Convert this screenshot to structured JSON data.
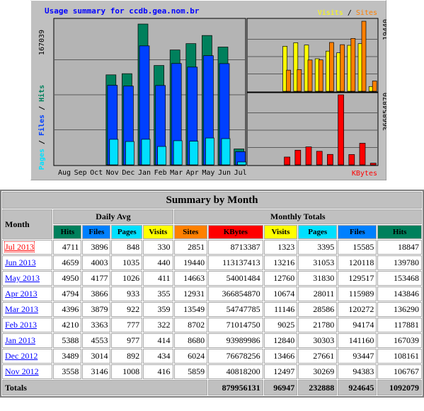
{
  "graph": {
    "title": "Usage summary for ccdb.gea.nom.br",
    "legend_visits": "Visits",
    "legend_sep": " / ",
    "legend_sites": "Sites",
    "left_max_label": "167039",
    "left_legend_pages": "Pages",
    "left_legend_sep1": " / ",
    "left_legend_files": "Files",
    "left_legend_sep2": " / ",
    "left_legend_hits": "Hits",
    "rt_max_label": "19440",
    "rb_max_label": "366854870",
    "rb_legend": "KBytes",
    "colors": {
      "hits": "#00805c",
      "files": "#0040ff",
      "pages": "#00e0ff",
      "visits": "#ffff00",
      "sites": "#ff8000",
      "kbytes": "#ff0000",
      "panel": "#c0c0c0"
    }
  },
  "chart_data": {
    "type": "bar",
    "categories": [
      "Aug",
      "Sep",
      "Oct",
      "Nov",
      "Dec",
      "Jan",
      "Feb",
      "Mar",
      "Apr",
      "May",
      "Jun",
      "Jul"
    ],
    "series": [
      {
        "name": "Hits",
        "values": [
          0,
          0,
          0,
          106767,
          108161,
          167039,
          117881,
          136290,
          143846,
          153468,
          139780,
          18847
        ]
      },
      {
        "name": "Files",
        "values": [
          0,
          0,
          0,
          94383,
          93447,
          141160,
          94174,
          120272,
          115989,
          129517,
          120118,
          15585
        ]
      },
      {
        "name": "Pages",
        "values": [
          0,
          0,
          0,
          30269,
          27661,
          30303,
          21780,
          28586,
          28011,
          31830,
          31053,
          3395
        ]
      },
      {
        "name": "Visits",
        "values": [
          0,
          0,
          0,
          12497,
          13466,
          12840,
          9025,
          11146,
          10674,
          12760,
          13216,
          1323
        ]
      },
      {
        "name": "Sites",
        "values": [
          0,
          0,
          0,
          5859,
          6024,
          8680,
          8702,
          13549,
          12931,
          14663,
          19440,
          2851
        ]
      },
      {
        "name": "KBytes",
        "values": [
          0,
          0,
          0,
          40818200,
          76678256,
          93989986,
          71014750,
          54747785,
          366854870,
          54001484,
          113137413,
          8713387
        ]
      }
    ]
  },
  "table": {
    "title": "Summary by Month",
    "month_header": "Month",
    "daily_avg_header": "Daily Avg",
    "monthly_totals_header": "Monthly Totals",
    "columns": [
      "Hits",
      "Files",
      "Pages",
      "Visits",
      "Sites",
      "KBytes",
      "Visits",
      "Pages",
      "Files",
      "Hits"
    ],
    "rows": [
      {
        "month": "Jul 2013",
        "cells": [
          "4711",
          "3896",
          "848",
          "330",
          "2851",
          "8713387",
          "1323",
          "3395",
          "15585",
          "18847"
        ]
      },
      {
        "month": "Jun 2013",
        "cells": [
          "4659",
          "4003",
          "1035",
          "440",
          "19440",
          "113137413",
          "13216",
          "31053",
          "120118",
          "139780"
        ]
      },
      {
        "month": "May 2013",
        "cells": [
          "4950",
          "4177",
          "1026",
          "411",
          "14663",
          "54001484",
          "12760",
          "31830",
          "129517",
          "153468"
        ]
      },
      {
        "month": "Apr 2013",
        "cells": [
          "4794",
          "3866",
          "933",
          "355",
          "12931",
          "366854870",
          "10674",
          "28011",
          "115989",
          "143846"
        ]
      },
      {
        "month": "Mar 2013",
        "cells": [
          "4396",
          "3879",
          "922",
          "359",
          "13549",
          "54747785",
          "11146",
          "28586",
          "120272",
          "136290"
        ]
      },
      {
        "month": "Feb 2013",
        "cells": [
          "4210",
          "3363",
          "777",
          "322",
          "8702",
          "71014750",
          "9025",
          "21780",
          "94174",
          "117881"
        ]
      },
      {
        "month": "Jan 2013",
        "cells": [
          "5388",
          "4553",
          "977",
          "414",
          "8680",
          "93989986",
          "12840",
          "30303",
          "141160",
          "167039"
        ]
      },
      {
        "month": "Dec 2012",
        "cells": [
          "3489",
          "3014",
          "892",
          "434",
          "6024",
          "76678256",
          "13466",
          "27661",
          "93447",
          "108161"
        ]
      },
      {
        "month": "Nov 2012",
        "cells": [
          "3558",
          "3146",
          "1008",
          "416",
          "5859",
          "40818200",
          "12497",
          "30269",
          "94383",
          "106767"
        ]
      }
    ],
    "totals_label": "Totals",
    "totals": [
      "879956131",
      "96947",
      "232888",
      "924645",
      "1092079"
    ],
    "header_colors": {
      "Hits": "#00805c",
      "Files": "#0080ff",
      "Pages": "#00e0ff",
      "Visits": "#ffff00",
      "Sites": "#ff8000",
      "KBytes": "#ff0000"
    }
  }
}
